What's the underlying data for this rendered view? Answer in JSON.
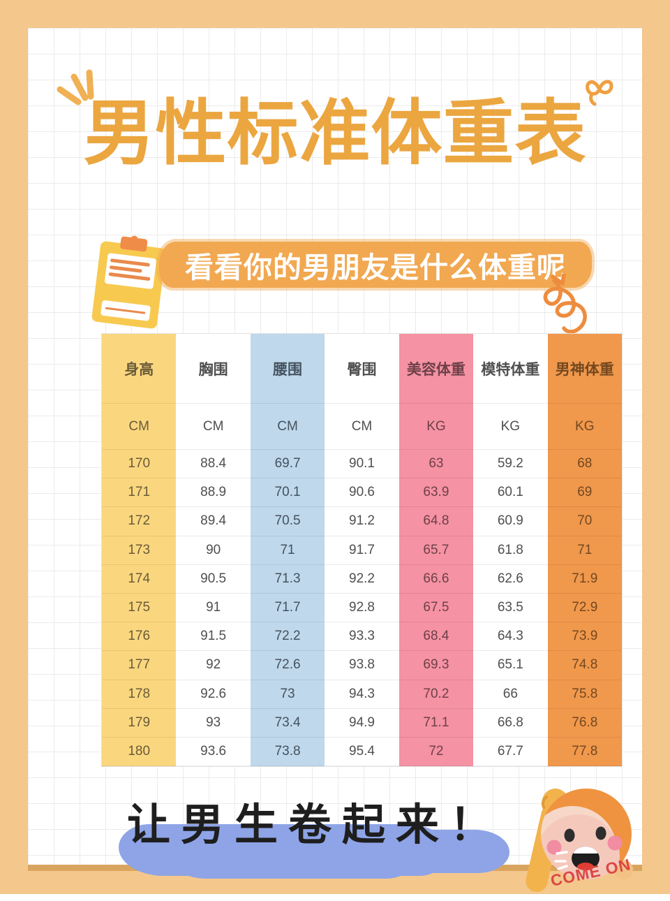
{
  "header": {
    "title": "男性标准体重表",
    "subtitle": "看看你的男朋友是什么体重呢"
  },
  "footer": {
    "slogan": "让男生卷起来！",
    "cheer": "COME ON"
  },
  "colors": {
    "frame": "#F4C78C",
    "card_shadow": "#D9A55E",
    "title": "#EBA640",
    "banner": "#F1A851",
    "banner_text": "#FFFFFF",
    "highlight_brush": "#8EA4E7",
    "cheer_text": "#DB4743",
    "column_yellow": "#FAD77F",
    "column_blue": "#BFD8EB",
    "column_pink": "#F592A3",
    "column_orange": "#F0984C"
  },
  "icons": {
    "clipboard": "clipboard-icon",
    "emphasis": "emphasis-dashes-icon",
    "ribbon": "ribbon-icon",
    "coil": "coil-squiggle-icon",
    "character": "cheering-boy-icon"
  },
  "table": {
    "columns": [
      {
        "label": "身高",
        "unit": "CM",
        "bg": "#FAD77F",
        "fg": "#6A5A38"
      },
      {
        "label": "胸围",
        "unit": "CM",
        "bg": "#FFFFFF",
        "fg": "#4F4F4F"
      },
      {
        "label": "腰围",
        "unit": "CM",
        "bg": "#BFD8EB",
        "fg": "#44525F"
      },
      {
        "label": "臀围",
        "unit": "CM",
        "bg": "#FFFFFF",
        "fg": "#4F4F4F"
      },
      {
        "label": "美容体重",
        "unit": "KG",
        "bg": "#F592A3",
        "fg": "#6D4049"
      },
      {
        "label": "模特体重",
        "unit": "KG",
        "bg": "#FFFFFF",
        "fg": "#4F4F4F"
      },
      {
        "label": "男神体重",
        "unit": "KG",
        "bg": "#F0984C",
        "fg": "#74481F"
      }
    ],
    "rows": [
      [
        "170",
        "88.4",
        "69.7",
        "90.1",
        "63",
        "59.2",
        "68"
      ],
      [
        "171",
        "88.9",
        "70.1",
        "90.6",
        "63.9",
        "60.1",
        "69"
      ],
      [
        "172",
        "89.4",
        "70.5",
        "91.2",
        "64.8",
        "60.9",
        "70"
      ],
      [
        "173",
        "90",
        "71",
        "91.7",
        "65.7",
        "61.8",
        "71"
      ],
      [
        "174",
        "90.5",
        "71.3",
        "92.2",
        "66.6",
        "62.6",
        "71.9"
      ],
      [
        "175",
        "91",
        "71.7",
        "92.8",
        "67.5",
        "63.5",
        "72.9"
      ],
      [
        "176",
        "91.5",
        "72.2",
        "93.3",
        "68.4",
        "64.3",
        "73.9"
      ],
      [
        "177",
        "92",
        "72.6",
        "93.8",
        "69.3",
        "65.1",
        "74.8"
      ],
      [
        "178",
        "92.6",
        "73",
        "94.3",
        "70.2",
        "66",
        "75.8"
      ],
      [
        "179",
        "93",
        "73.4",
        "94.9",
        "71.1",
        "66.8",
        "76.8"
      ],
      [
        "180",
        "93.6",
        "73.8",
        "95.4",
        "72",
        "67.7",
        "77.8"
      ]
    ]
  }
}
